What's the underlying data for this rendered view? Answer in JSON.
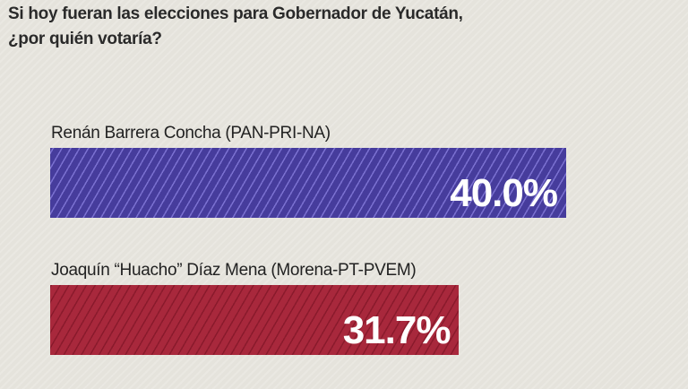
{
  "chart_data": {
    "type": "bar",
    "orientation": "horizontal",
    "title": "Si hoy fueran las elecciones para Gobernador de Yucatán, ¿por quién votaría?",
    "title_lines": [
      "Si hoy fueran las elecciones para Gobernador de Yucatán,",
      "¿por quién votaría?"
    ],
    "categories": [
      "Renán Barrera Concha (PAN-PRI-NA)",
      "Joaquín “Huacho” Díaz Mena (Morena-PT-PVEM)"
    ],
    "values": [
      40.0,
      31.7
    ],
    "value_labels": [
      "40.0%",
      "31.7%"
    ],
    "colors": [
      "#463c9c",
      "#a8283c"
    ],
    "stripe_colors": [
      "#7a70d0",
      "#8a1a2c"
    ],
    "xlim": [
      0,
      40.0
    ],
    "grid": false
  }
}
